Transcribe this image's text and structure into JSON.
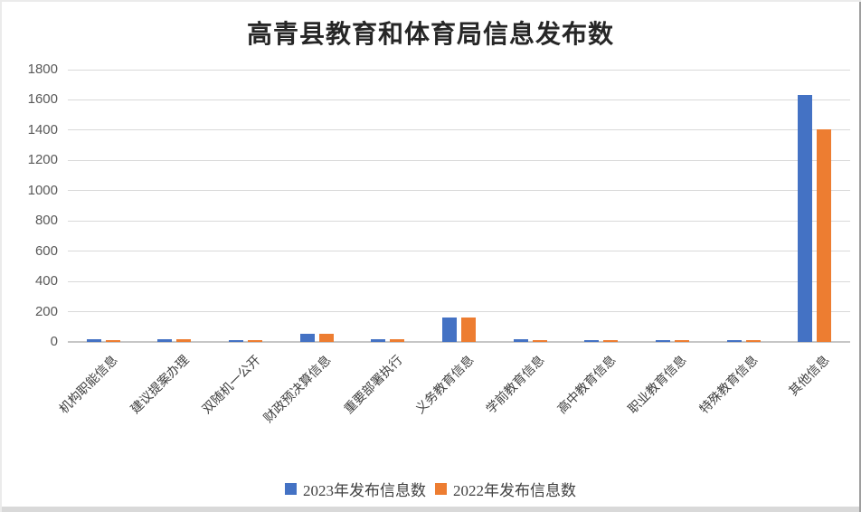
{
  "title": "高青县教育和体育局信息发布数",
  "chart_data": {
    "type": "bar",
    "title": "高青县教育和体育局信息发布数",
    "categories": [
      "机构职能信息",
      "建议提案办理",
      "双随机一公开",
      "财政预决算信息",
      "重要部署执行",
      "义务教育信息",
      "学前教育信息",
      "高中教育信息",
      "职业教育信息",
      "特殊教育信息",
      "其他信息"
    ],
    "series": [
      {
        "name": "2023年发布信息数",
        "color": "#4472C4",
        "values": [
          20,
          20,
          12,
          55,
          20,
          162,
          20,
          13,
          12,
          11,
          1630
        ]
      },
      {
        "name": "2022年发布信息数",
        "color": "#ED7D31",
        "values": [
          12,
          18,
          10,
          52,
          16,
          160,
          14,
          12,
          12,
          10,
          1405
        ]
      }
    ],
    "xlabel": "",
    "ylabel": "",
    "ylim": [
      0,
      1800
    ],
    "yticks": [
      0,
      200,
      400,
      600,
      800,
      1000,
      1200,
      1400,
      1600,
      1800
    ],
    "grid": true,
    "legend_position": "bottom",
    "style": {
      "gridline_color": "#d9d9d9",
      "axis_color": "#c6c6c6",
      "ytick_color": "#595959",
      "xtick_color": "#404040",
      "title_color": "#262626"
    }
  }
}
